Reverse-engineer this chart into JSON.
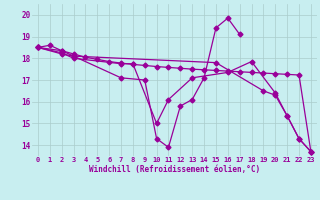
{
  "background_color": "#c8eef0",
  "line_color": "#990099",
  "grid_color": "#aacccc",
  "xlabel": "Windchill (Refroidissement éolien,°C)",
  "ylim": [
    13.5,
    20.5
  ],
  "xlim": [
    -0.5,
    23.5
  ],
  "yticks": [
    14,
    15,
    16,
    17,
    18,
    19,
    20
  ],
  "xticks": [
    0,
    1,
    2,
    3,
    4,
    5,
    6,
    7,
    8,
    9,
    10,
    11,
    12,
    13,
    14,
    15,
    16,
    17,
    18,
    19,
    20,
    21,
    22,
    23
  ],
  "series_a_x": [
    0,
    1,
    2,
    3,
    4,
    5,
    6,
    7,
    8,
    9,
    10,
    11,
    12,
    13,
    14,
    15,
    16,
    17,
    18,
    19,
    20,
    21,
    22,
    23
  ],
  "series_a_y": [
    18.5,
    18.6,
    18.35,
    18.2,
    18.05,
    17.95,
    17.85,
    17.78,
    17.72,
    17.67,
    17.62,
    17.58,
    17.54,
    17.5,
    17.47,
    17.44,
    17.41,
    17.38,
    17.35,
    17.32,
    17.29,
    17.26,
    17.23,
    13.7
  ],
  "series_b_x": [
    0,
    2,
    3,
    7,
    9,
    10,
    11,
    12,
    13,
    14,
    15,
    16,
    17
  ],
  "series_b_y": [
    18.5,
    18.35,
    18.1,
    17.1,
    17.0,
    14.3,
    13.9,
    15.8,
    16.1,
    17.1,
    19.4,
    19.85,
    19.1
  ],
  "series_c_x": [
    0,
    2,
    3,
    7,
    8,
    10,
    11,
    13,
    16,
    18,
    20,
    21,
    22,
    23
  ],
  "series_c_y": [
    18.5,
    18.25,
    18.0,
    17.75,
    17.75,
    15.0,
    16.1,
    17.1,
    17.35,
    17.85,
    16.4,
    15.35,
    14.3,
    13.7
  ],
  "series_d_x": [
    0,
    2,
    3,
    15,
    19,
    20,
    21,
    22,
    23
  ],
  "series_d_y": [
    18.5,
    18.2,
    18.1,
    17.8,
    16.5,
    16.3,
    15.35,
    14.3,
    13.7
  ]
}
